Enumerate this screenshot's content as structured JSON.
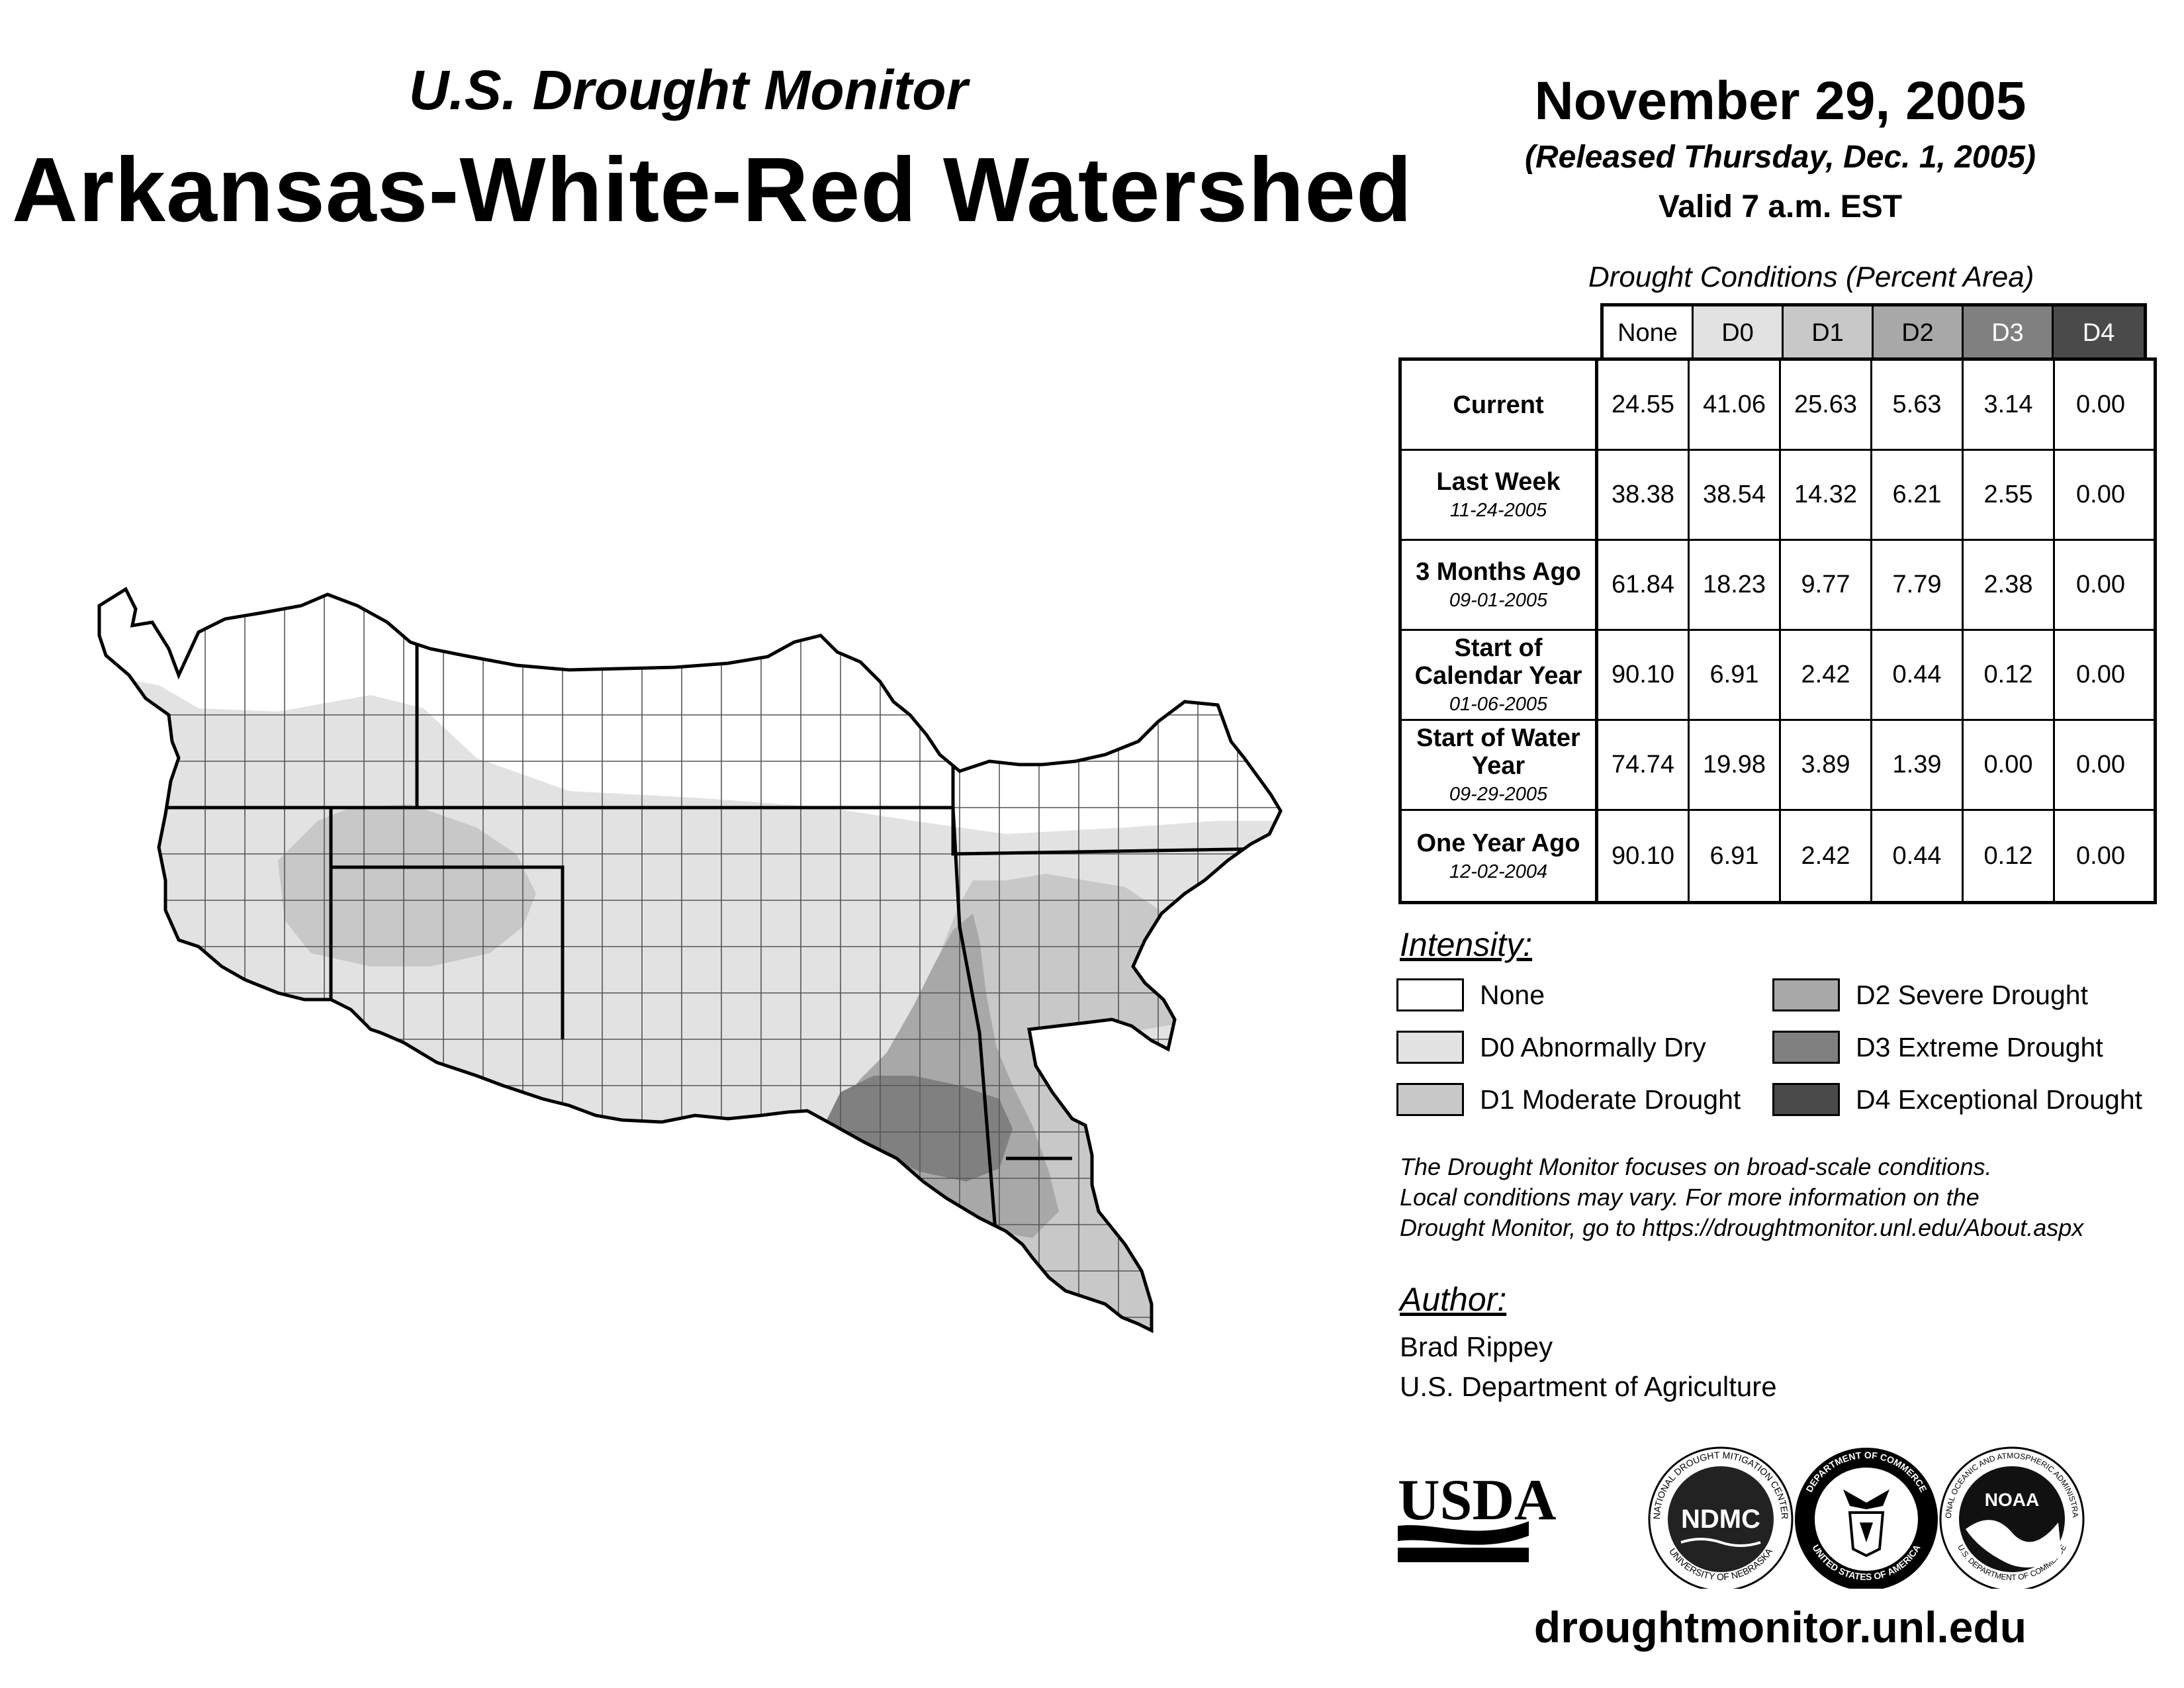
{
  "header": {
    "subtitle": "U.S. Drought Monitor",
    "title": "Arkansas-White-Red Watershed",
    "date": "November 29, 2005",
    "released": "(Released Thursday, Dec. 1, 2005)",
    "valid": "Valid 7 a.m. EST"
  },
  "table": {
    "title": "Drought Conditions (Percent Area)",
    "columns": [
      "None",
      "D0",
      "D1",
      "D2",
      "D3",
      "D4"
    ],
    "column_colors": [
      "#ffffff",
      "#e2e2e2",
      "#c8c8c8",
      "#a8a8a8",
      "#808080",
      "#4a4a4a"
    ],
    "column_text_colors": [
      "#000000",
      "#000000",
      "#000000",
      "#000000",
      "#ffffff",
      "#ffffff"
    ],
    "rows": [
      {
        "label": "Current",
        "date": "",
        "values": [
          "24.55",
          "41.06",
          "25.63",
          "5.63",
          "3.14",
          "0.00"
        ]
      },
      {
        "label": "Last Week",
        "date": "11-24-2005",
        "values": [
          "38.38",
          "38.54",
          "14.32",
          "6.21",
          "2.55",
          "0.00"
        ]
      },
      {
        "label": "3 Months Ago",
        "date": "09-01-2005",
        "values": [
          "61.84",
          "18.23",
          "9.77",
          "7.79",
          "2.38",
          "0.00"
        ]
      },
      {
        "label": "Start of Calendar Year",
        "date": "01-06-2005",
        "values": [
          "90.10",
          "6.91",
          "2.42",
          "0.44",
          "0.12",
          "0.00"
        ]
      },
      {
        "label": "Start of Water Year",
        "date": "09-29-2005",
        "values": [
          "74.74",
          "19.98",
          "3.89",
          "1.39",
          "0.00",
          "0.00"
        ]
      },
      {
        "label": "One Year Ago",
        "date": "12-02-2004",
        "values": [
          "90.10",
          "6.91",
          "2.42",
          "0.44",
          "0.12",
          "0.00"
        ]
      }
    ]
  },
  "legend": {
    "title": "Intensity:",
    "items": [
      {
        "label": "None",
        "color": "#ffffff"
      },
      {
        "label": "D0 Abnormally Dry",
        "color": "#e2e2e2"
      },
      {
        "label": "D1 Moderate Drought",
        "color": "#c8c8c8"
      },
      {
        "label": "D2 Severe Drought",
        "color": "#a8a8a8"
      },
      {
        "label": "D3 Extreme Drought",
        "color": "#808080"
      },
      {
        "label": "D4 Exceptional Drought",
        "color": "#4a4a4a"
      }
    ]
  },
  "note": {
    "line1": "The Drought Monitor focuses on broad-scale conditions.",
    "line2": "Local conditions may vary. For more information on the",
    "line3": "Drought Monitor, go to https://droughtmonitor.unl.edu/About.aspx"
  },
  "author": {
    "heading": "Author:",
    "name": "Brad Rippey",
    "org": "U.S. Department of Agriculture"
  },
  "logos": {
    "usda": "USDA",
    "ndmc": "NDMC",
    "ndmc_ring_top": "NATIONAL DROUGHT MITIGATION CENTER",
    "ndmc_ring_bottom": "UNIVERSITY OF NEBRASKA",
    "doc_ring_top": "DEPARTMENT OF COMMERCE",
    "doc_ring_bottom": "UNITED STATES OF AMERICA",
    "noaa": "NOAA",
    "noaa_ring_top": "NATIONAL OCEANIC AND ATMOSPHERIC ADMINISTRATION",
    "noaa_ring_bottom": "U.S. DEPARTMENT OF COMMERCE"
  },
  "footer": {
    "url": "droughtmonitor.unl.edu"
  }
}
